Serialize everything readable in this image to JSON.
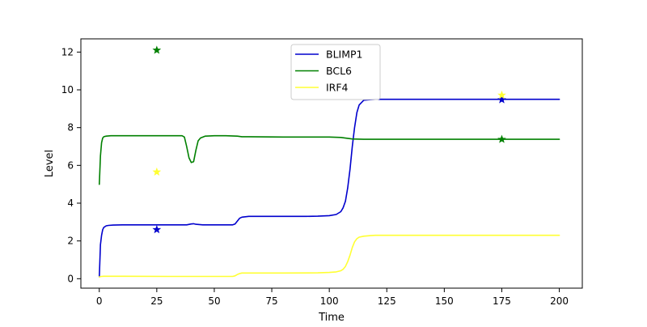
{
  "chart_data": {
    "type": "line",
    "title": "",
    "xlabel": "Time",
    "ylabel": "Level",
    "xlim": [
      -8,
      210
    ],
    "ylim": [
      -0.5,
      12.7
    ],
    "xticks": [
      0,
      25,
      50,
      75,
      100,
      125,
      150,
      175,
      200
    ],
    "yticks": [
      0,
      2,
      4,
      6,
      8,
      10,
      12
    ],
    "grid": false,
    "legend": {
      "position": "top-center"
    },
    "series": [
      {
        "name": "BLIMP1",
        "color": "#0000cd",
        "x": [
          0,
          0.5,
          1,
          1.5,
          2,
          3,
          4,
          6,
          10,
          20,
          30,
          38,
          40,
          41,
          42,
          45,
          50,
          55,
          58,
          59,
          60,
          61,
          62,
          65,
          70,
          80,
          90,
          95,
          100,
          103,
          105,
          106,
          107,
          108,
          109,
          110,
          111,
          112,
          113,
          115,
          118,
          120,
          130,
          150,
          175,
          200
        ],
        "y": [
          0.1,
          1.8,
          2.3,
          2.6,
          2.72,
          2.8,
          2.82,
          2.84,
          2.85,
          2.85,
          2.85,
          2.85,
          2.9,
          2.91,
          2.88,
          2.85,
          2.85,
          2.85,
          2.85,
          2.9,
          3.05,
          3.2,
          3.26,
          3.3,
          3.3,
          3.3,
          3.3,
          3.31,
          3.34,
          3.4,
          3.55,
          3.75,
          4.1,
          4.8,
          5.8,
          7.0,
          8.0,
          8.8,
          9.2,
          9.45,
          9.48,
          9.5,
          9.5,
          9.5,
          9.5,
          9.5
        ]
      },
      {
        "name": "BCL6",
        "color": "#008000",
        "x": [
          0,
          0.5,
          1,
          1.5,
          2,
          3,
          5,
          10,
          20,
          30,
          36,
          37,
          38,
          39,
          40,
          41,
          42,
          43,
          44,
          46,
          50,
          55,
          60,
          62,
          65,
          80,
          100,
          105,
          110,
          115,
          125,
          150,
          175,
          200
        ],
        "y": [
          5.0,
          6.5,
          7.2,
          7.45,
          7.52,
          7.55,
          7.57,
          7.57,
          7.57,
          7.57,
          7.57,
          7.5,
          7.0,
          6.4,
          6.15,
          6.2,
          6.8,
          7.3,
          7.45,
          7.55,
          7.57,
          7.57,
          7.55,
          7.52,
          7.52,
          7.5,
          7.5,
          7.48,
          7.4,
          7.38,
          7.38,
          7.38,
          7.38,
          7.38
        ]
      },
      {
        "name": "IRF4",
        "color": "#ffff33",
        "x": [
          0,
          1,
          2,
          5,
          10,
          30,
          58,
          59,
          60,
          61,
          62,
          65,
          80,
          95,
          100,
          103,
          105,
          106,
          107,
          108,
          109,
          110,
          111,
          112,
          113,
          115,
          118,
          120,
          150,
          175,
          200
        ],
        "y": [
          0.1,
          0.12,
          0.13,
          0.13,
          0.13,
          0.12,
          0.12,
          0.15,
          0.22,
          0.27,
          0.3,
          0.3,
          0.3,
          0.31,
          0.33,
          0.36,
          0.42,
          0.5,
          0.65,
          0.9,
          1.25,
          1.65,
          1.95,
          2.12,
          2.2,
          2.25,
          2.28,
          2.3,
          2.3,
          2.3,
          2.3
        ]
      }
    ],
    "markers": [
      {
        "series": "BLIMP1",
        "x": 25,
        "y": 2.6,
        "symbol": "star",
        "color": "#0000cd"
      },
      {
        "series": "BCL6",
        "x": 25,
        "y": 12.1,
        "symbol": "star",
        "color": "#008000"
      },
      {
        "series": "IRF4",
        "x": 25,
        "y": 5.65,
        "symbol": "star",
        "color": "#ffff33"
      },
      {
        "series": "BLIMP1",
        "x": 175,
        "y": 9.48,
        "symbol": "star",
        "color": "#0000cd"
      },
      {
        "series": "BCL6",
        "x": 175,
        "y": 7.38,
        "symbol": "star",
        "color": "#008000"
      },
      {
        "series": "IRF4",
        "x": 175,
        "y": 9.72,
        "symbol": "star",
        "color": "#ffff33"
      }
    ]
  }
}
